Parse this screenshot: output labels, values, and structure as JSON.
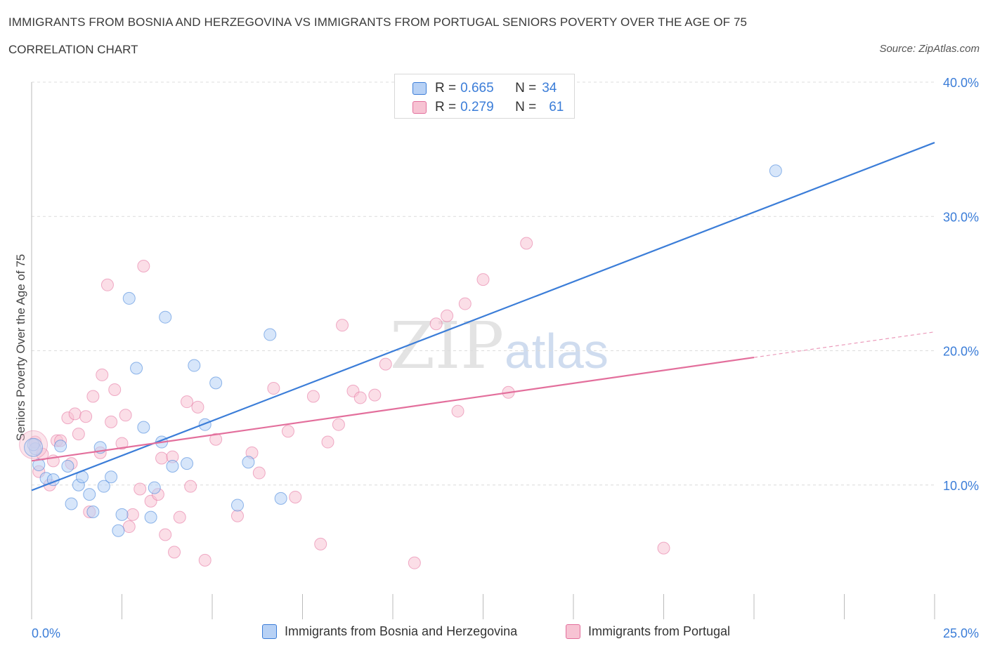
{
  "title": "IMMIGRANTS FROM BOSNIA AND HERZEGOVINA VS IMMIGRANTS FROM PORTUGAL SENIORS POVERTY OVER THE AGE OF 75",
  "subtitle": "CORRELATION CHART",
  "source": "Source: ZipAtlas.com",
  "watermark": {
    "zip": "ZIP",
    "atlas": "atlas"
  },
  "colors": {
    "blue": "#3b7dd8",
    "blue_fill": "#b7d1f5",
    "pink": "#e36f9c",
    "pink_fill": "#f7c3d3",
    "grid": "#dcdcdc",
    "axis_label": "#3b7dd8"
  },
  "legend": {
    "rows": [
      {
        "r_label": "R = ",
        "r_value": "0.665",
        "n_label": "N = ",
        "n_value": "34"
      },
      {
        "r_label": "R = ",
        "r_value": "0.279",
        "n_label": "N = ",
        "n_value": "61"
      }
    ]
  },
  "bottom_legend": [
    "Immigrants from Bosnia and Herzegovina",
    "Immigrants from Portugal"
  ],
  "chart_data": {
    "type": "scatter",
    "title": "IMMIGRANTS FROM BOSNIA AND HERZEGOVINA VS IMMIGRANTS FROM PORTUGAL SENIORS POVERTY OVER THE AGE OF 75",
    "xlabel": "",
    "ylabel": "Seniors Poverty Over the Age of 75",
    "xlim": [
      0,
      25
    ],
    "ylim": [
      0,
      40
    ],
    "x_tick_labels": [
      "0.0%",
      "25.0%"
    ],
    "y_ticks": [
      10,
      20,
      30,
      40
    ],
    "y_tick_labels": [
      "10.0%",
      "20.0%",
      "30.0%",
      "40.0%"
    ],
    "grid": true,
    "series": [
      {
        "name": "Immigrants from Bosnia and Herzegovina",
        "color": "blue",
        "R": 0.665,
        "N": 34,
        "trend": {
          "x": [
            0,
            25
          ],
          "y": [
            9.6,
            35.5
          ]
        },
        "points": [
          [
            0.1,
            12.7
          ],
          [
            0.2,
            11.5
          ],
          [
            0.4,
            10.5
          ],
          [
            0.6,
            10.4
          ],
          [
            0.8,
            12.9
          ],
          [
            1.0,
            11.4
          ],
          [
            1.1,
            8.6
          ],
          [
            1.3,
            10.0
          ],
          [
            1.4,
            10.6
          ],
          [
            1.6,
            9.3
          ],
          [
            1.7,
            8.0
          ],
          [
            1.9,
            12.8
          ],
          [
            2.0,
            9.9
          ],
          [
            2.2,
            10.6
          ],
          [
            2.4,
            6.6
          ],
          [
            2.5,
            7.8
          ],
          [
            2.7,
            23.9
          ],
          [
            2.9,
            18.7
          ],
          [
            3.1,
            14.3
          ],
          [
            3.3,
            7.6
          ],
          [
            3.4,
            9.8
          ],
          [
            3.6,
            13.2
          ],
          [
            3.7,
            22.5
          ],
          [
            3.9,
            11.4
          ],
          [
            4.3,
            11.6
          ],
          [
            4.5,
            18.9
          ],
          [
            4.8,
            14.5
          ],
          [
            5.1,
            17.6
          ],
          [
            5.7,
            8.5
          ],
          [
            6.0,
            11.7
          ],
          [
            6.6,
            21.2
          ],
          [
            6.9,
            9.0
          ],
          [
            20.6,
            33.4
          ],
          [
            0.05,
            13.0
          ]
        ]
      },
      {
        "name": "Immigrants from Portugal",
        "color": "pink",
        "R": 0.279,
        "N": 61,
        "trend": {
          "x": [
            0,
            20
          ],
          "y": [
            11.8,
            19.5
          ]
        },
        "trend_extension": {
          "x": [
            20,
            25
          ],
          "y": [
            19.5,
            21.4
          ]
        },
        "points": [
          [
            0.1,
            13.2
          ],
          [
            0.2,
            11.0
          ],
          [
            0.3,
            12.3
          ],
          [
            0.5,
            10.0
          ],
          [
            0.6,
            11.8
          ],
          [
            0.7,
            13.3
          ],
          [
            0.8,
            13.3
          ],
          [
            1.0,
            15.0
          ],
          [
            1.1,
            11.6
          ],
          [
            1.2,
            15.3
          ],
          [
            1.3,
            13.8
          ],
          [
            1.5,
            15.1
          ],
          [
            1.6,
            8.0
          ],
          [
            1.7,
            16.6
          ],
          [
            1.9,
            12.4
          ],
          [
            1.95,
            18.2
          ],
          [
            2.1,
            24.9
          ],
          [
            2.2,
            14.7
          ],
          [
            2.3,
            17.1
          ],
          [
            2.5,
            13.1
          ],
          [
            2.6,
            15.2
          ],
          [
            2.7,
            6.9
          ],
          [
            2.8,
            7.8
          ],
          [
            3.0,
            9.7
          ],
          [
            3.1,
            26.3
          ],
          [
            3.3,
            8.8
          ],
          [
            3.5,
            9.3
          ],
          [
            3.6,
            12.0
          ],
          [
            3.7,
            6.3
          ],
          [
            3.9,
            12.1
          ],
          [
            3.95,
            5.0
          ],
          [
            4.1,
            7.6
          ],
          [
            4.3,
            16.2
          ],
          [
            4.4,
            9.9
          ],
          [
            4.6,
            15.8
          ],
          [
            4.8,
            4.4
          ],
          [
            5.1,
            13.4
          ],
          [
            5.7,
            7.7
          ],
          [
            6.1,
            12.4
          ],
          [
            6.3,
            10.9
          ],
          [
            6.7,
            17.2
          ],
          [
            7.1,
            14.0
          ],
          [
            7.3,
            9.1
          ],
          [
            7.8,
            16.6
          ],
          [
            8.0,
            5.6
          ],
          [
            8.2,
            13.2
          ],
          [
            8.5,
            14.5
          ],
          [
            8.6,
            21.9
          ],
          [
            8.9,
            17.0
          ],
          [
            9.1,
            16.5
          ],
          [
            9.5,
            16.7
          ],
          [
            9.8,
            19.0
          ],
          [
            10.6,
            4.2
          ],
          [
            11.2,
            22.0
          ],
          [
            11.5,
            22.6
          ],
          [
            11.8,
            15.5
          ],
          [
            12.0,
            23.5
          ],
          [
            12.5,
            25.3
          ],
          [
            13.2,
            16.9
          ],
          [
            13.7,
            28.0
          ],
          [
            17.5,
            5.3
          ]
        ]
      }
    ]
  }
}
